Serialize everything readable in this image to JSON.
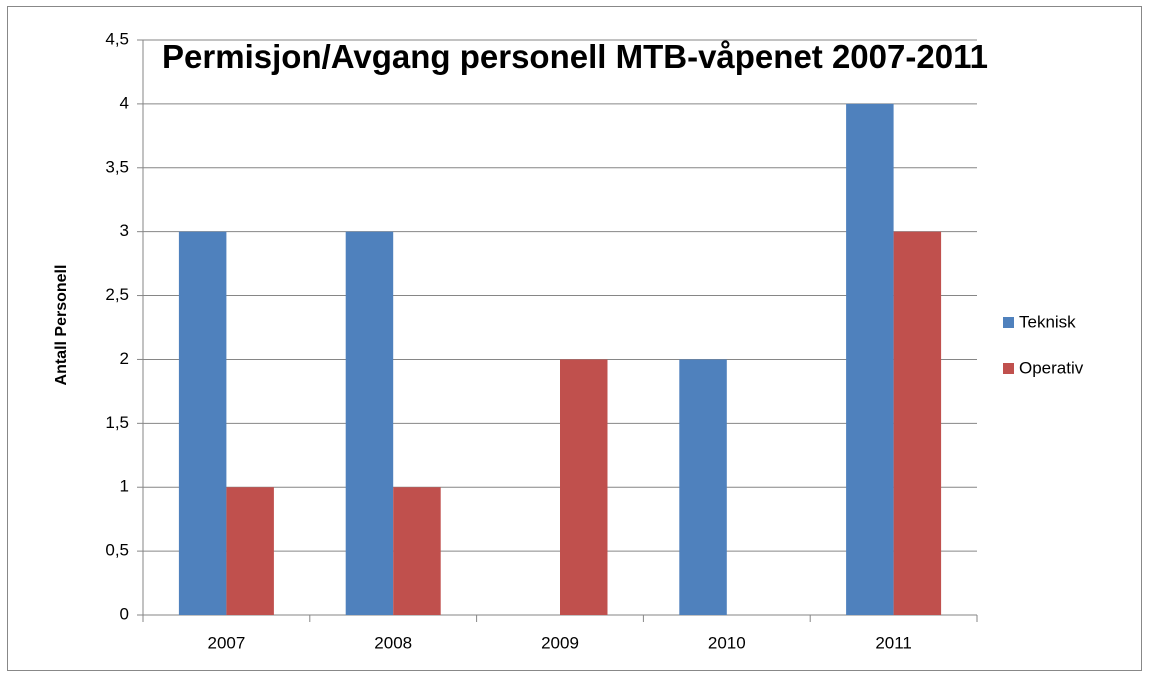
{
  "chart_data": {
    "type": "bar",
    "title": "Permisjon/Avgang personell MTB-våpenet 2007-2011",
    "y_label": "Antall Personell",
    "categories": [
      "2007",
      "2008",
      "2009",
      "2010",
      "2011"
    ],
    "series": [
      {
        "name": "Teknisk",
        "color": "#4f81bd",
        "values": [
          3,
          3,
          0,
          2,
          4
        ]
      },
      {
        "name": "Operativ",
        "color": "#c0504d",
        "values": [
          1,
          1,
          2,
          0,
          3
        ]
      }
    ],
    "ylim": [
      0,
      4.5
    ],
    "yticks": [
      0,
      {
        "value": 0.5,
        "label": "0,5"
      },
      1,
      {
        "value": 1.5,
        "label": "1,5"
      },
      2,
      {
        "value": 2.5,
        "label": "2,5"
      },
      3,
      {
        "value": 3.5,
        "label": "3,5"
      },
      4,
      {
        "value": 4.5,
        "label": "4,5"
      }
    ],
    "grid": true,
    "legend": "right"
  }
}
